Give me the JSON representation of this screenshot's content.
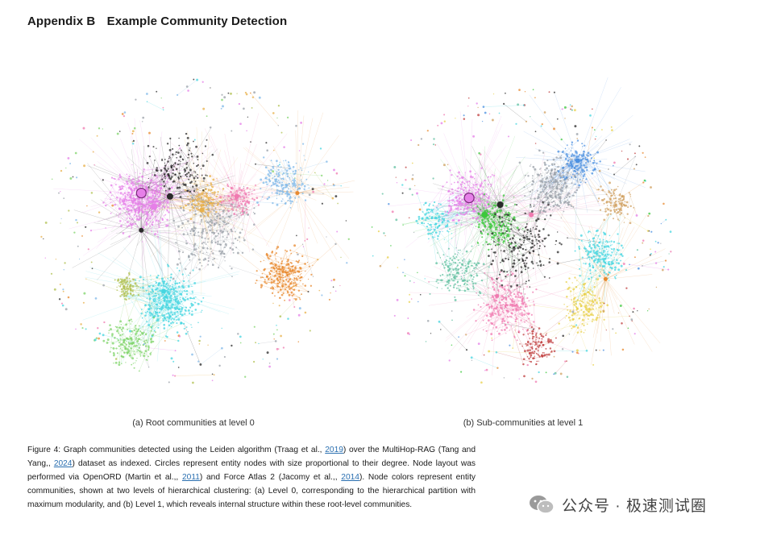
{
  "header": {
    "number": "Appendix B",
    "title": "Example Community Detection"
  },
  "figure": {
    "subfig_a_label": "(a) Root communities at level 0",
    "subfig_b_label": "(b) Sub-communities at level 1",
    "caption": {
      "p1": "Figure 4: Graph communities detected using the Leiden algorithm (Traag et al.,",
      "c1": "2019",
      "p2": ") over the MultiHop-RAG (Tang and Yang,,",
      "c2": "2024",
      "p3": ") dataset as indexed. Circles represent entity nodes with size proportional to their degree. Node layout was performed via OpenORD (Martin et al.,,",
      "c3": "2011",
      "p4": ") and Force Atlas 2 (Jacomy et al.,,",
      "c4": "2014",
      "p5": "). Node colors represent entity communities, shown at two levels of hierarchical clustering: (a) Level 0, corresponding to the hierarchical partition with maximum modularity, and (b) Level 1, which reveals internal structure within these root-level communities."
    }
  },
  "palette": {
    "level0": [
      "#e67fe8",
      "#45d6e0",
      "#e8892f",
      "#7fd46a",
      "#9aa0a8",
      "#e8b04a",
      "#7fb8e8",
      "#2a2a2a",
      "#f07ab0",
      "#b0c050"
    ],
    "level1": [
      "#e67fe8",
      "#45d6e0",
      "#e8892f",
      "#3cc83c",
      "#9aa0a8",
      "#e8d04a",
      "#4a8fe0",
      "#2a2a2a",
      "#f07ab0",
      "#c04040",
      "#60c0a0",
      "#d0a060"
    ]
  },
  "watermark": {
    "text": "公众号 · 极速测试圈",
    "icon": "wechat-icon"
  }
}
